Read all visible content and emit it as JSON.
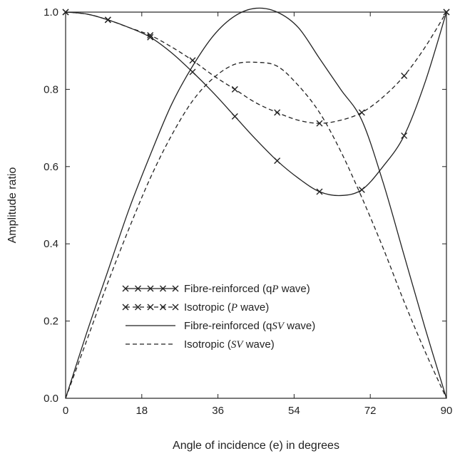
{
  "chart_data": {
    "type": "line",
    "title": "",
    "xlabel": "Angle of incidence (e) in degrees",
    "ylabel": "Amplitude ratio",
    "xlim": [
      0,
      90
    ],
    "ylim": [
      0.0,
      1.0
    ],
    "xticks": [
      0,
      18,
      36,
      54,
      72,
      90
    ],
    "yticks": [
      "0.0",
      "0.2",
      "0.4",
      "0.6",
      "0.8",
      "1.0"
    ],
    "grid": false,
    "legend_position": "lower-left",
    "series": [
      {
        "name": "Fibre-reinforced (qP wave)",
        "style": "solid-x",
        "x": [
          0,
          5,
          10,
          15,
          20,
          25,
          30,
          35,
          40,
          45,
          50,
          55,
          60,
          65,
          70,
          75,
          80,
          85,
          90
        ],
        "y": [
          1.0,
          0.995,
          0.98,
          0.96,
          0.935,
          0.895,
          0.845,
          0.79,
          0.73,
          0.67,
          0.615,
          0.57,
          0.535,
          0.525,
          0.54,
          0.6,
          0.68,
          0.82,
          1.0
        ],
        "markers_x": [
          0,
          10,
          20,
          30,
          40,
          50,
          60,
          70,
          80,
          90
        ],
        "markers_y": [
          1.0,
          0.98,
          0.935,
          0.845,
          0.73,
          0.615,
          0.535,
          0.54,
          0.68,
          1.0
        ]
      },
      {
        "name": "Isotropic (P wave)",
        "style": "dashed-x",
        "x": [
          0,
          5,
          10,
          15,
          20,
          25,
          30,
          35,
          40,
          45,
          50,
          55,
          60,
          65,
          70,
          75,
          80,
          85,
          90
        ],
        "y": [
          1.0,
          0.995,
          0.98,
          0.96,
          0.94,
          0.91,
          0.875,
          0.835,
          0.8,
          0.765,
          0.74,
          0.72,
          0.712,
          0.72,
          0.74,
          0.78,
          0.835,
          0.91,
          1.0
        ],
        "markers_x": [
          0,
          10,
          20,
          30,
          40,
          50,
          60,
          70,
          80,
          90
        ],
        "markers_y": [
          1.0,
          0.98,
          0.94,
          0.875,
          0.8,
          0.74,
          0.712,
          0.74,
          0.835,
          1.0
        ]
      },
      {
        "name": "Fibre-reinforced (qSV wave)",
        "style": "solid",
        "x": [
          0,
          5,
          10,
          15,
          20,
          25,
          30,
          35,
          40,
          45,
          50,
          55,
          60,
          65,
          70,
          75,
          80,
          85,
          90
        ],
        "y": [
          0.0,
          0.17,
          0.33,
          0.49,
          0.63,
          0.76,
          0.86,
          0.94,
          0.99,
          1.01,
          1.0,
          0.96,
          0.88,
          0.8,
          0.72,
          0.56,
          0.37,
          0.18,
          0.0
        ]
      },
      {
        "name": "Isotropic (SV wave)",
        "style": "dashed",
        "x": [
          0,
          5,
          10,
          15,
          20,
          25,
          30,
          35,
          40,
          45,
          50,
          55,
          60,
          65,
          70,
          75,
          80,
          85,
          90
        ],
        "y": [
          0.0,
          0.15,
          0.3,
          0.44,
          0.57,
          0.68,
          0.77,
          0.83,
          0.865,
          0.87,
          0.86,
          0.81,
          0.74,
          0.64,
          0.52,
          0.39,
          0.25,
          0.12,
          0.0
        ]
      }
    ],
    "legend": [
      {
        "prefix": "Fibre-reinforced (q",
        "italic": "P",
        "suffix": " wave)",
        "style": "solid-x"
      },
      {
        "prefix": "Isotropic (",
        "italic": "P",
        "suffix": " wave)",
        "style": "dashed-x"
      },
      {
        "prefix": "Fibre-reinforced (q",
        "italic": "SV",
        "suffix": " wave)",
        "style": "solid"
      },
      {
        "prefix": "Isotropic (",
        "italic": "SV",
        "suffix": " wave)",
        "style": "dashed"
      }
    ]
  }
}
